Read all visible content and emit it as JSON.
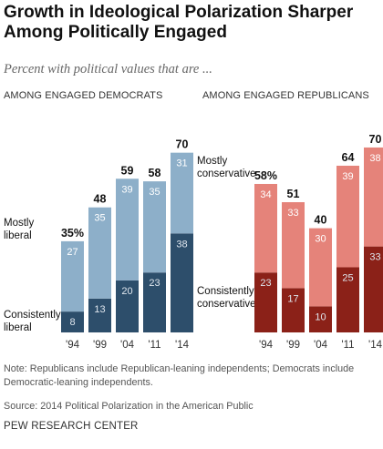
{
  "title": "Growth in Ideological Polarization Sharper Among Politically Engaged",
  "subtitle": "Percent with political values that are ...",
  "note": "Note: Republicans include Republican-leaning independents; Democrats include Democratic-leaning independents.",
  "source": "Source: 2014 Political Polarization in the American Public",
  "organization": "PEW RESEARCH CENTER",
  "colors": {
    "dem_light": "#8dafc9",
    "dem_dark": "#2d4e6b",
    "rep_light": "#e5837a",
    "rep_dark": "#8b2118",
    "label_on_light": "#ffffff",
    "label_on_dark": "#dfe6ee"
  },
  "chart_data": [
    {
      "type": "bar",
      "stacked": true,
      "title": "AMONG ENGAGED DEMOCRATS",
      "categories": [
        "'94",
        "'99",
        "'04",
        "'11",
        "'14"
      ],
      "series": [
        {
          "name": "Consistently liberal",
          "values": [
            8,
            13,
            20,
            23,
            38
          ]
        },
        {
          "name": "Mostly liberal",
          "values": [
            27,
            35,
            39,
            35,
            31
          ]
        }
      ],
      "totals": [
        35,
        48,
        59,
        58,
        70
      ],
      "total_labels": [
        "35%",
        "48",
        "59",
        "58",
        "70"
      ],
      "ylim": [
        0,
        70
      ]
    },
    {
      "type": "bar",
      "stacked": true,
      "title": "AMONG ENGAGED REPUBLICANS",
      "categories": [
        "'94",
        "'99",
        "'04",
        "'11",
        "'14"
      ],
      "series": [
        {
          "name": "Consistently conservative",
          "values": [
            23,
            17,
            10,
            25,
            33
          ]
        },
        {
          "name": "Mostly conservative",
          "values": [
            34,
            33,
            30,
            39,
            38
          ]
        }
      ],
      "totals": [
        58,
        51,
        40,
        64,
        70
      ],
      "total_labels": [
        "58%",
        "51",
        "40",
        "64",
        "70"
      ],
      "ylim": [
        0,
        70
      ]
    }
  ],
  "side_labels": {
    "dem_light": [
      "Mostly",
      "liberal"
    ],
    "dem_dark": [
      "Consistently",
      "liberal"
    ],
    "rep_light": [
      "Mostly",
      "conservative"
    ],
    "rep_dark": [
      "Consistently",
      "conservative"
    ]
  }
}
